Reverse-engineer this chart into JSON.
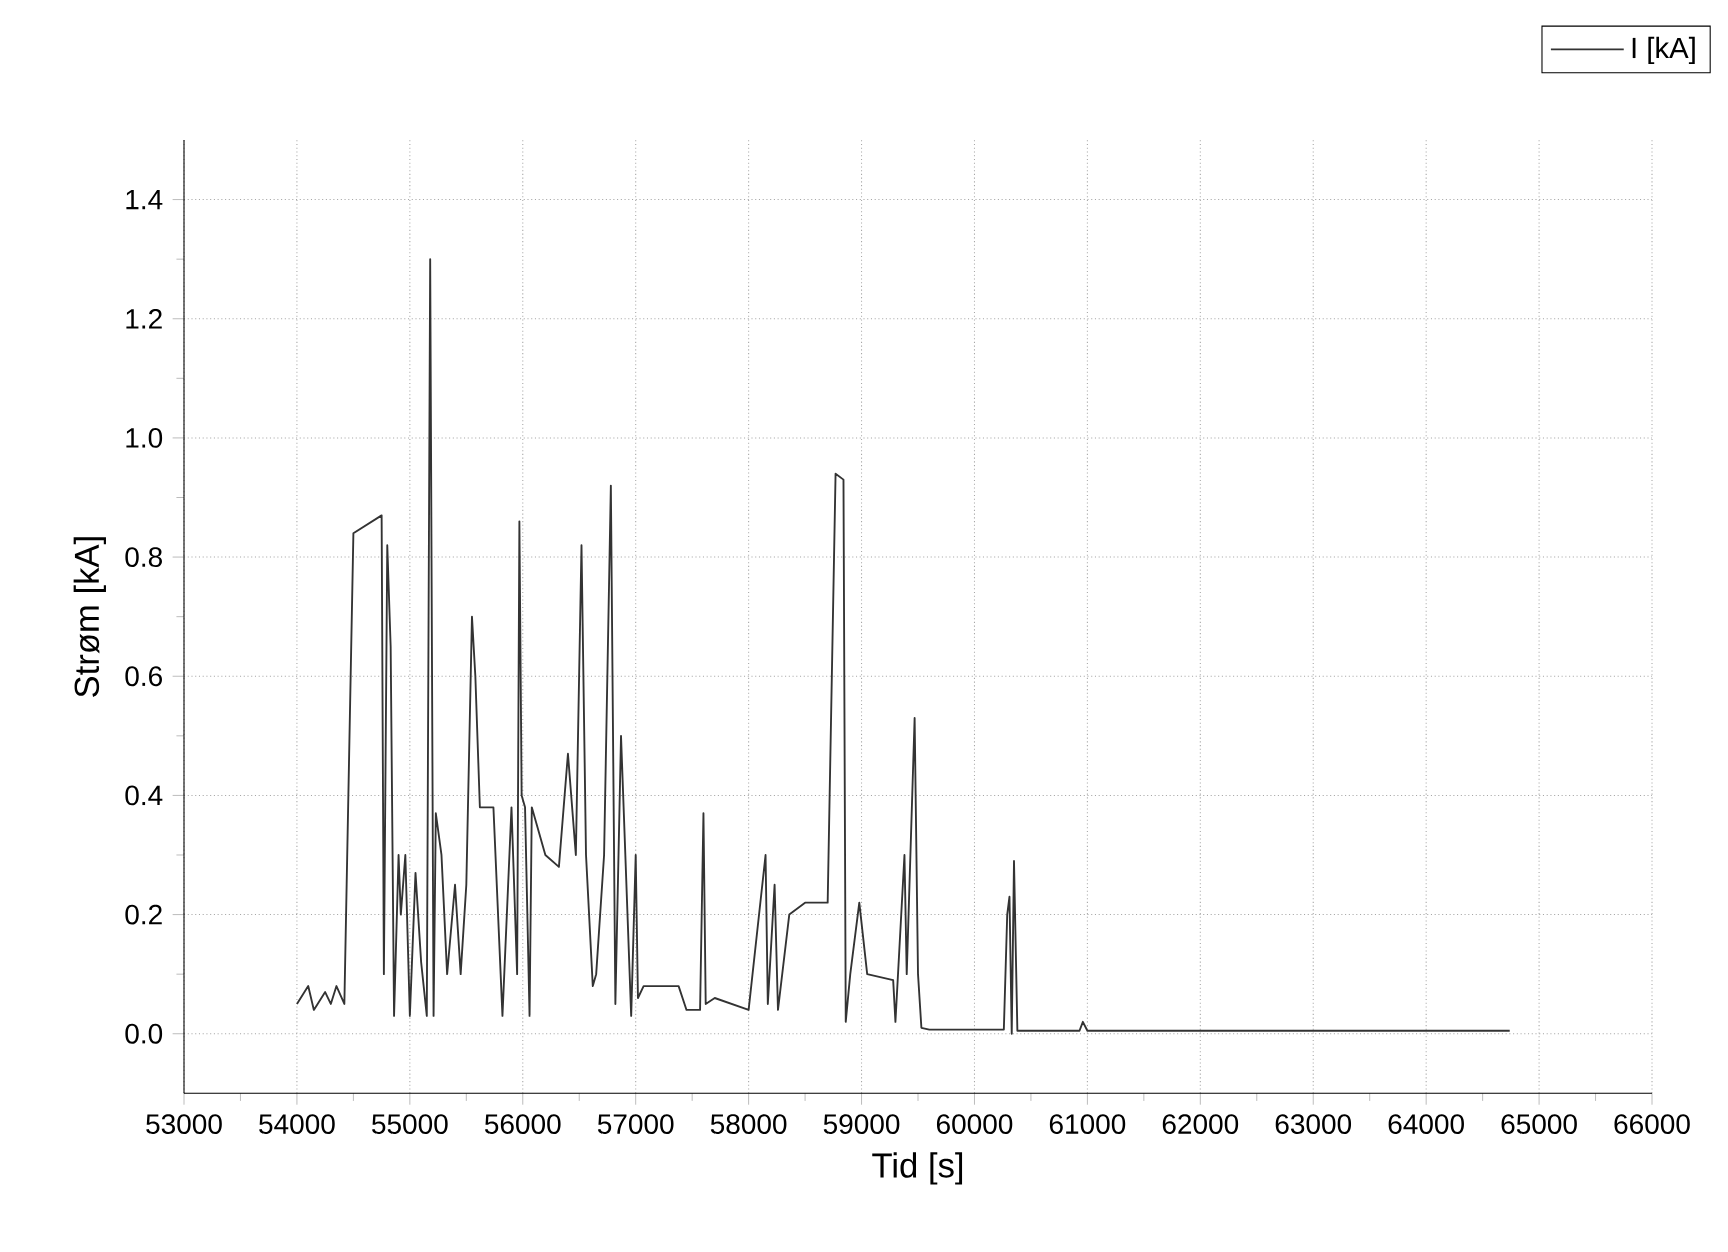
{
  "chart_data": {
    "type": "line",
    "xlabel": "Tid [s]",
    "ylabel": "Strøm [kA]",
    "legend": "top right",
    "grid": true,
    "marker": "none",
    "line_style": "solid",
    "xlim": [
      53000,
      66000
    ],
    "ylim": [
      -0.1,
      1.5
    ],
    "xticks": [
      53000,
      54000,
      55000,
      56000,
      57000,
      58000,
      59000,
      60000,
      61000,
      62000,
      63000,
      64000,
      65000,
      66000
    ],
    "yticks": [
      {
        "value": 0,
        "label": "0.0"
      },
      {
        "value": 0.2,
        "label": "0.2"
      },
      {
        "value": 0.4,
        "label": "0.4"
      },
      {
        "value": 0.6,
        "label": "0.6"
      },
      {
        "value": 0.8,
        "label": "0.8"
      },
      {
        "value": 1.0,
        "label": "1.0"
      },
      {
        "value": 1.2,
        "label": "1.2"
      },
      {
        "value": 1.4,
        "label": "1.4"
      }
    ],
    "series": [
      {
        "name": "I [kA]",
        "color": "#333333",
        "x": [
          54000,
          54100,
          54150,
          54250,
          54300,
          54350,
          54420,
          54500,
          54750,
          54770,
          54800,
          54830,
          54860,
          54900,
          54920,
          54960,
          55000,
          55050,
          55100,
          55150,
          55180,
          55210,
          55230,
          55280,
          55330,
          55400,
          55450,
          55500,
          55550,
          55580,
          55620,
          55740,
          55820,
          55900,
          55950,
          55970,
          55990,
          56020,
          56060,
          56080,
          56200,
          56320,
          56400,
          56470,
          56520,
          56560,
          56620,
          56650,
          56720,
          56780,
          56820,
          56870,
          56960,
          57000,
          57020,
          57070,
          57380,
          57450,
          57570,
          57600,
          57620,
          57700,
          58000,
          58150,
          58170,
          58230,
          58260,
          58360,
          58500,
          58700,
          58770,
          58840,
          58860,
          58900,
          58980,
          59050,
          59280,
          59300,
          59380,
          59400,
          59470,
          59500,
          59530,
          59600,
          60260,
          60290,
          60310,
          60330,
          60350,
          60380,
          60930,
          60960,
          61000,
          64740
        ],
        "values": [
          0.05,
          0.08,
          0.04,
          0.07,
          0.05,
          0.08,
          0.05,
          0.84,
          0.87,
          0.1,
          0.82,
          0.65,
          0.03,
          0.3,
          0.2,
          0.3,
          0.03,
          0.27,
          0.12,
          0.03,
          1.3,
          0.03,
          0.37,
          0.3,
          0.1,
          0.25,
          0.1,
          0.25,
          0.7,
          0.6,
          0.38,
          0.38,
          0.03,
          0.38,
          0.1,
          0.86,
          0.4,
          0.38,
          0.03,
          0.38,
          0.3,
          0.28,
          0.47,
          0.3,
          0.82,
          0.3,
          0.08,
          0.1,
          0.3,
          0.92,
          0.05,
          0.5,
          0.03,
          0.3,
          0.06,
          0.08,
          0.08,
          0.04,
          0.04,
          0.37,
          0.05,
          0.06,
          0.04,
          0.3,
          0.05,
          0.25,
          0.04,
          0.2,
          0.22,
          0.22,
          0.94,
          0.93,
          0.02,
          0.1,
          0.22,
          0.1,
          0.09,
          0.02,
          0.3,
          0.1,
          0.53,
          0.1,
          0.01,
          0.007,
          0.007,
          0.2,
          0.23,
          0.0,
          0.29,
          0.005,
          0.005,
          0.02,
          0.005,
          0.005
        ]
      }
    ]
  }
}
